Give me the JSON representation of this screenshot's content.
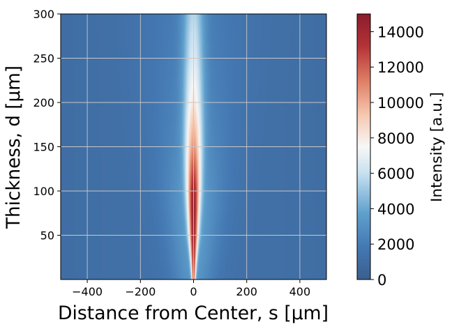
{
  "chart_data": {
    "type": "heatmap",
    "title": "",
    "xlabel": "Distance from Center, s [µm]",
    "ylabel": "Thickness, d [µm]",
    "xlim": [
      -500,
      500
    ],
    "ylim": [
      0,
      300
    ],
    "x_ticks": [
      -400,
      -200,
      0,
      200,
      400
    ],
    "x_tick_labels": [
      "−400",
      "−200",
      "0",
      "200",
      "400"
    ],
    "y_ticks": [
      50,
      100,
      150,
      200,
      250,
      300
    ],
    "y_tick_labels": [
      "50",
      "100",
      "150",
      "200",
      "250",
      "300"
    ],
    "grid": true,
    "colormap": "RdBu_r",
    "colorbar": {
      "label": "Intensity [a.u.]",
      "range": [
        0,
        15000
      ],
      "ticks": [
        0,
        2000,
        4000,
        6000,
        8000,
        10000,
        12000,
        14000
      ],
      "tick_labels": [
        "0",
        "2000",
        "4000",
        "6000",
        "8000",
        "10000",
        "12000",
        "14000"
      ]
    },
    "peak": {
      "s": 0,
      "d": 80,
      "intensity": 14500
    },
    "profile": [
      {
        "d": 0,
        "center_intensity": 12000,
        "width_um": 5
      },
      {
        "d": 25,
        "center_intensity": 13500,
        "width_um": 8
      },
      {
        "d": 50,
        "center_intensity": 14200,
        "width_um": 12
      },
      {
        "d": 80,
        "center_intensity": 14500,
        "width_um": 15
      },
      {
        "d": 100,
        "center_intensity": 14000,
        "width_um": 17
      },
      {
        "d": 150,
        "center_intensity": 10500,
        "width_um": 22
      },
      {
        "d": 200,
        "center_intensity": 8000,
        "width_um": 25
      },
      {
        "d": 250,
        "center_intensity": 6500,
        "width_um": 27
      },
      {
        "d": 300,
        "center_intensity": 5500,
        "width_um": 28
      }
    ],
    "background_intensity": 1200,
    "colors": {
      "low": "#3a5f8e",
      "mid": "#f7f7f7",
      "high": "#8a1c2c"
    }
  }
}
